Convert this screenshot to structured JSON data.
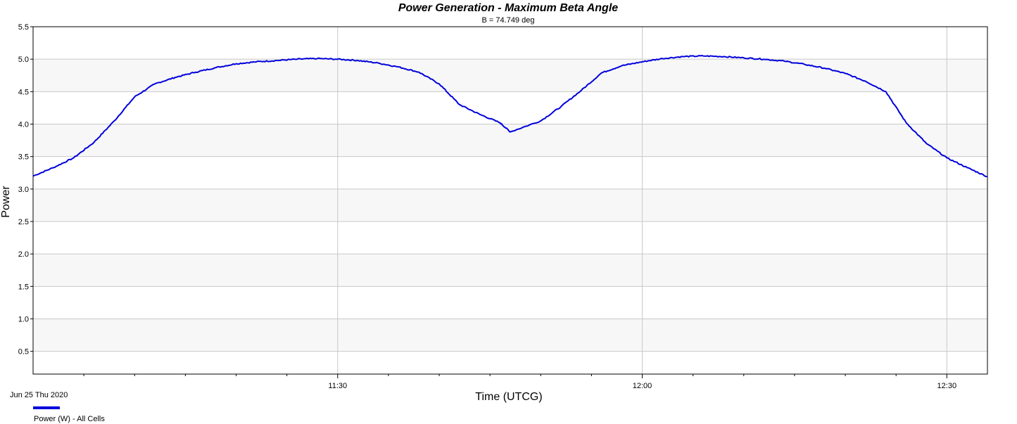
{
  "chart_data": {
    "type": "line",
    "title": "Power Generation - Maximum Beta Angle",
    "subtitle": "B = 74.749 deg",
    "xlabel": "Time (UTCG)",
    "ylabel": "Power",
    "date_label": "Jun 25 Thu 2020",
    "x_tick_labels": [
      "11:30",
      "12:00",
      "12:30"
    ],
    "y_ticks": [
      "0.5",
      "1.0",
      "1.5",
      "2.0",
      "2.5",
      "3.0",
      "3.5",
      "4.0",
      "4.5",
      "5.0",
      "5.5"
    ],
    "ylim": [
      0.15,
      5.5
    ],
    "x_unit": "minutes",
    "xlim": [
      "11:00",
      "12:34"
    ],
    "grid": true,
    "legend_position": "bottom-left",
    "series": [
      {
        "name": "Power (W) - All Cells",
        "color": "#0000dd",
        "x": [
          "11:00",
          "11:02",
          "11:04",
          "11:06",
          "11:08",
          "11:10",
          "11:12",
          "11:14",
          "11:16",
          "11:18",
          "11:20",
          "11:22",
          "11:24",
          "11:26",
          "11:28",
          "11:30",
          "11:32",
          "11:34",
          "11:36",
          "11:38",
          "11:40",
          "11:42",
          "11:44",
          "11:46",
          "11:47",
          "11:50",
          "11:52",
          "11:54",
          "11:56",
          "11:58",
          "12:00",
          "12:02",
          "12:04",
          "12:06",
          "12:08",
          "12:10",
          "12:12",
          "12:14",
          "12:16",
          "12:18",
          "12:20",
          "12:22",
          "12:24",
          "12:26",
          "12:28",
          "12:30",
          "12:32",
          "12:34"
        ],
        "values": [
          3.2,
          3.33,
          3.48,
          3.72,
          4.05,
          4.42,
          4.62,
          4.72,
          4.8,
          4.87,
          4.93,
          4.96,
          4.98,
          5.0,
          5.01,
          5.0,
          4.98,
          4.94,
          4.88,
          4.8,
          4.62,
          4.3,
          4.15,
          4.02,
          3.88,
          4.05,
          4.27,
          4.52,
          4.79,
          4.9,
          4.96,
          5.01,
          5.04,
          5.05,
          5.04,
          5.02,
          5.0,
          4.97,
          4.92,
          4.86,
          4.78,
          4.66,
          4.5,
          4.02,
          3.7,
          3.48,
          3.33,
          3.19
        ]
      }
    ]
  }
}
